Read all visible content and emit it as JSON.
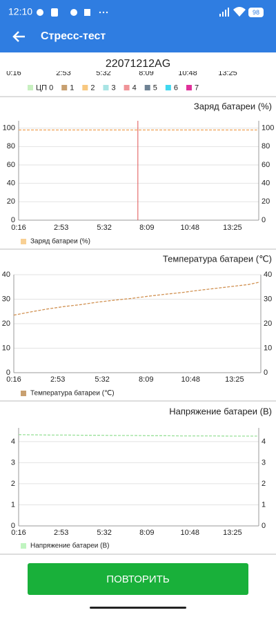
{
  "status_bar": {
    "time": "12:10",
    "battery": "98"
  },
  "app_bar": {
    "title": "Стресс-тест"
  },
  "device": "22071212AG",
  "cpu_chart": {
    "xticks": [
      "0:16",
      "2:53",
      "5:32",
      "8:09",
      "10:48",
      "13:25"
    ],
    "series": [
      {
        "name": "ЦП 0",
        "color": "#c8f0c0"
      },
      {
        "name": "1",
        "color": "#c8a070"
      },
      {
        "name": "2",
        "color": "#f8c880"
      },
      {
        "name": "3",
        "color": "#a8e4e4"
      },
      {
        "name": "4",
        "color": "#f09498"
      },
      {
        "name": "5",
        "color": "#6e8294"
      },
      {
        "name": "6",
        "color": "#40d8f0"
      },
      {
        "name": "7",
        "color": "#e0309a"
      }
    ]
  },
  "chart_data": [
    {
      "type": "line",
      "title": "Заряд батареи (%)",
      "marker_x": 456,
      "marker_color": "#e05050",
      "x": [
        16,
        76,
        136,
        196,
        256,
        316,
        376,
        436,
        496,
        556,
        616,
        676,
        736,
        796,
        856,
        896
      ],
      "series": [
        {
          "name": "Заряд батареи (%)",
          "color": "#f0a860",
          "legend_color": "#f8d094",
          "values": [
            98,
            98,
            98,
            98,
            98,
            98,
            98,
            98,
            98,
            98,
            98,
            98,
            98,
            98,
            98,
            98
          ]
        }
      ],
      "xlim": [
        16,
        902
      ],
      "ylim": [
        0,
        108
      ],
      "yticks": [
        0,
        20,
        40,
        60,
        80,
        100
      ],
      "xticks": [
        {
          "value": 16,
          "label": "0:16"
        },
        {
          "value": 173,
          "label": "2:53"
        },
        {
          "value": 332,
          "label": "5:32"
        },
        {
          "value": 489,
          "label": "8:09"
        },
        {
          "value": 648,
          "label": "10:48"
        },
        {
          "value": 805,
          "label": "13:25"
        }
      ],
      "grid": true
    },
    {
      "type": "line",
      "title": "Температура батареи (℃)",
      "x": [
        16,
        76,
        136,
        196,
        256,
        316,
        376,
        436,
        496,
        556,
        616,
        676,
        736,
        796,
        856,
        896
      ],
      "series": [
        {
          "name": "Температура батареи (℃)",
          "color": "#d09050",
          "legend_color": "#c8a070",
          "values": [
            23.5,
            24.8,
            26,
            27,
            27.8,
            28.8,
            29.6,
            30.3,
            31.2,
            32,
            32.7,
            33.6,
            34.4,
            35.2,
            36,
            37
          ]
        }
      ],
      "xlim": [
        16,
        899
      ],
      "ylim": [
        0,
        40
      ],
      "yticks": [
        0,
        10,
        20,
        30,
        40
      ],
      "xticks": [
        {
          "value": 16,
          "label": "0:16"
        },
        {
          "value": 173,
          "label": "2:53"
        },
        {
          "value": 332,
          "label": "5:32"
        },
        {
          "value": 489,
          "label": "8:09"
        },
        {
          "value": 648,
          "label": "10:48"
        },
        {
          "value": 805,
          "label": "13:25"
        }
      ],
      "grid": true
    },
    {
      "type": "line",
      "title": "Напряжение батареи (В)",
      "x": [
        16,
        76,
        136,
        196,
        256,
        316,
        376,
        436,
        496,
        556,
        616,
        676,
        736,
        796,
        856,
        896
      ],
      "series": [
        {
          "name": "Напряжение батареи (В)",
          "color": "#98e098",
          "legend_color": "#c0f4c0",
          "values": [
            4.33,
            4.32,
            4.31,
            4.31,
            4.3,
            4.3,
            4.29,
            4.29,
            4.28,
            4.28,
            4.27,
            4.27,
            4.27,
            4.26,
            4.26,
            4.26
          ]
        }
      ],
      "xlim": [
        16,
        902
      ],
      "ylim": [
        0,
        4.65
      ],
      "yticks": [
        0,
        1,
        2,
        3,
        4
      ],
      "xticks": [
        {
          "value": 16,
          "label": "0:16"
        },
        {
          "value": 173,
          "label": "2:53"
        },
        {
          "value": 332,
          "label": "5:32"
        },
        {
          "value": 489,
          "label": "8:09"
        },
        {
          "value": 648,
          "label": "10:48"
        },
        {
          "value": 805,
          "label": "13:25"
        }
      ],
      "grid": true
    }
  ],
  "button": "ПОВТОРИТЬ"
}
